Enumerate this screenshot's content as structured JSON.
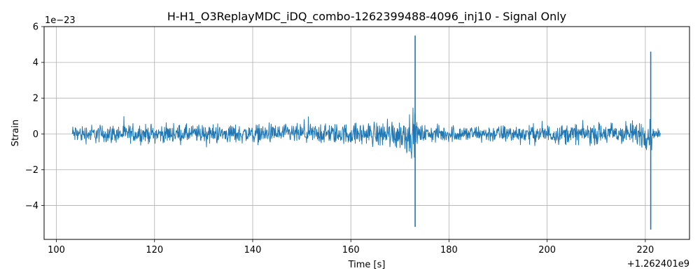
{
  "chart_data": {
    "type": "line",
    "title": "H-H1_O3ReplayMDC_iDQ_combo-1262399488-4096_inj10 - Signal Only",
    "xlabel": "Time [s]",
    "ylabel": "Strain",
    "x_offset_label": "+1.262401e9",
    "y_scale_label": "1e−23",
    "xlim": [
      97.5,
      229
    ],
    "ylim": [
      -5.9,
      6.0
    ],
    "grid": true,
    "line_color": "#1f77b4",
    "x_ticks": [
      100,
      120,
      140,
      160,
      180,
      200,
      220
    ],
    "x_tick_labels": [
      "100",
      "120",
      "140",
      "160",
      "180",
      "200",
      "220"
    ],
    "y_ticks": [
      -4,
      -2,
      0,
      2,
      4,
      6
    ],
    "y_tick_labels": [
      "−4",
      "−2",
      "0",
      "2",
      "4",
      "6"
    ],
    "series": [
      {
        "x_range": [
          103.2,
          223.2
        ],
        "envelope": {
          "x": [
            103.2,
            110,
            120,
            130,
            140,
            150,
            160,
            165,
            170,
            172.5,
            173.2,
            173.5,
            176,
            180,
            190,
            200,
            210,
            218,
            220.5,
            221.2,
            221.6,
            223.2
          ],
          "amplitude": [
            0.75,
            0.75,
            0.7,
            0.75,
            0.75,
            0.78,
            0.85,
            1.0,
            1.3,
            1.7,
            2.1,
            0.75,
            0.7,
            0.65,
            0.7,
            0.75,
            0.85,
            1.0,
            1.3,
            1.6,
            0.35,
            0.35
          ]
        },
        "spikes": [
          {
            "x": 173.1,
            "ymax": 5.5,
            "ymin": -5.2
          },
          {
            "x": 221.1,
            "ymax": 4.6,
            "ymin": -5.35
          }
        ]
      }
    ]
  }
}
